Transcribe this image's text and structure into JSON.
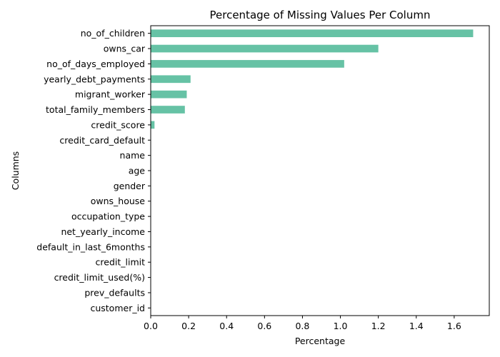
{
  "chart_data": {
    "type": "bar",
    "orientation": "horizontal",
    "title": "Percentage of Missing Values Per Column",
    "xlabel": "Percentage",
    "ylabel": "Columns",
    "xlim": [
      0,
      1.785
    ],
    "xticks": [
      "0.0",
      "0.2",
      "0.4",
      "0.6",
      "0.8",
      "1.0",
      "1.2",
      "1.4",
      "1.6"
    ],
    "grid": false,
    "legend": "none",
    "bar_color": "#66c2a5",
    "categories": [
      "no_of_children",
      "owns_car",
      "no_of_days_employed",
      "yearly_debt_payments",
      "migrant_worker",
      "total_family_members",
      "credit_score",
      "credit_card_default",
      "name",
      "age",
      "gender",
      "owns_house",
      "occupation_type",
      "net_yearly_income",
      "default_in_last_6months",
      "credit_limit",
      "credit_limit_used(%)",
      "prev_defaults",
      "customer_id"
    ],
    "values": [
      1.7,
      1.2,
      1.02,
      0.21,
      0.19,
      0.18,
      0.02,
      0,
      0,
      0,
      0,
      0,
      0,
      0,
      0,
      0,
      0,
      0,
      0
    ]
  }
}
